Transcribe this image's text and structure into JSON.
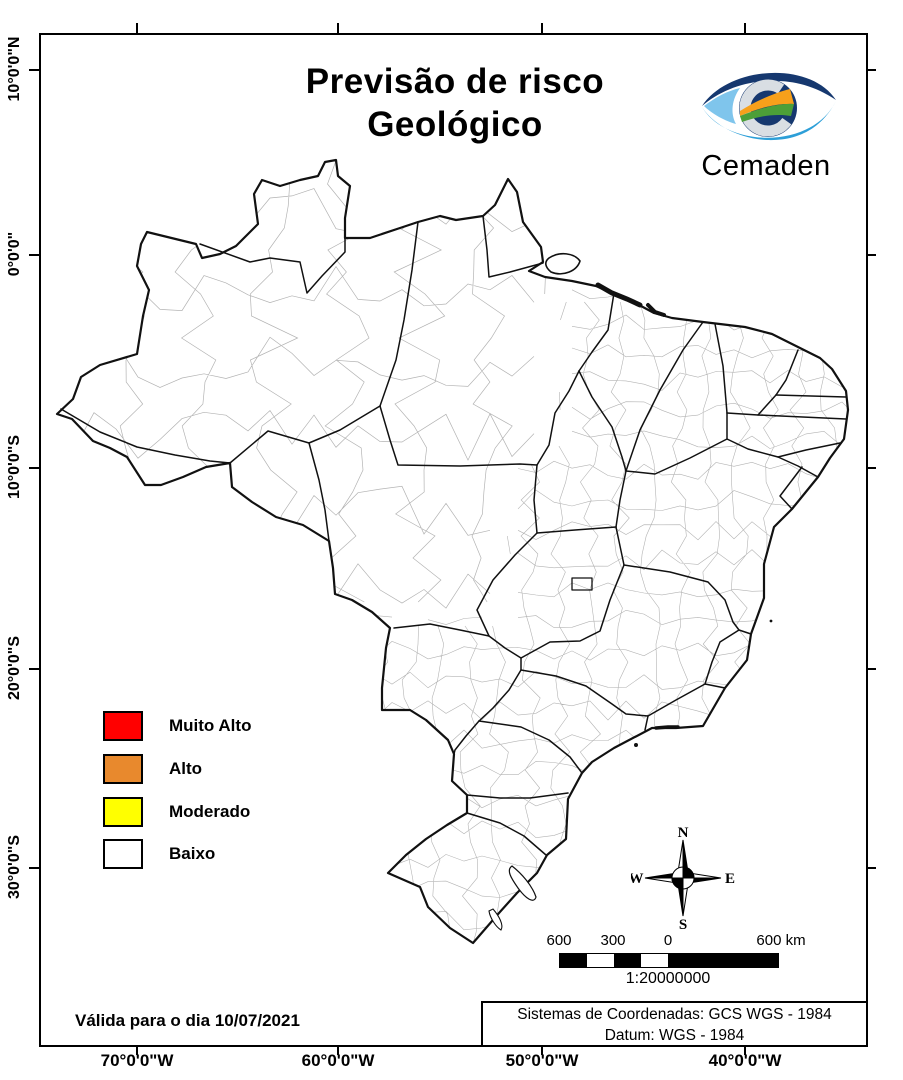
{
  "title": {
    "line1": "Previsão de risco",
    "line2": "Geológico"
  },
  "logo": {
    "text": "Cemaden",
    "text_color": "#1E73B8",
    "eye_dark": "#16386F",
    "eye_light_blue": "#2D9FD8",
    "inner_light": "#7FC5EC",
    "wave_orange": "#F7A01B",
    "wave_green": "#4C9F38",
    "c_silver": "#D9DEE3"
  },
  "legend": {
    "items": [
      {
        "label": "Muito Alto",
        "color": "#FF0000"
      },
      {
        "label": "Alto",
        "color": "#E8892D"
      },
      {
        "label": "Moderado",
        "color": "#FFFF00"
      },
      {
        "label": "Baixo",
        "color": "#FFFFFF"
      }
    ]
  },
  "validity": {
    "text": "Válida para o dia 10/07/2021"
  },
  "coordinates_box": {
    "line1": "Sistemas de Coordenadas: GCS WGS - 1984",
    "line2": "Datum: WGS - 1984"
  },
  "scale_bar": {
    "labels": [
      "600",
      "300",
      "0",
      "600 km"
    ],
    "ratio": "1:20000000"
  },
  "compass": {
    "n": "N",
    "e": "E",
    "s": "S",
    "w": "W"
  },
  "axis": {
    "lat_labels": [
      "10°0'0\"N",
      "0°0'0\"",
      "10°0'0\"S",
      "20°0'0\"S",
      "30°0'0\"S"
    ],
    "lon_labels": [
      "70°0'0\"W",
      "60°0'0\"W",
      "50°0'0\"W",
      "40°0'0\"W"
    ]
  },
  "map": {
    "region": "Brasil",
    "border_color": "#111111",
    "municipal_line_color": "#B3B3B3"
  }
}
